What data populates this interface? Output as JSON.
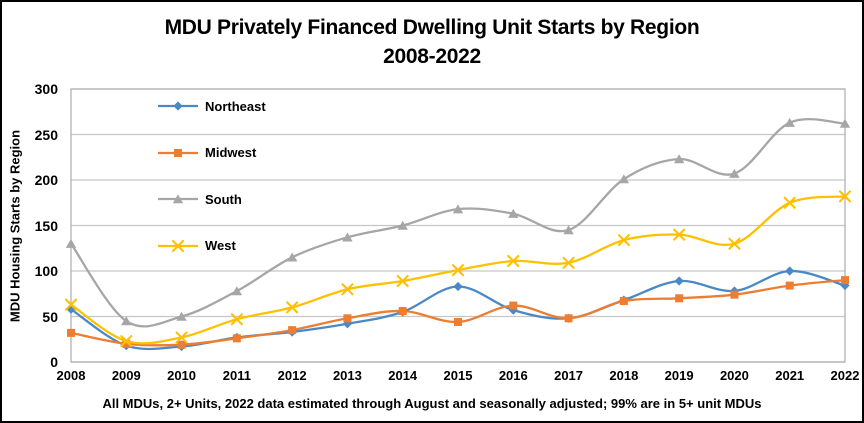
{
  "chart_data": {
    "type": "line",
    "title": "MDU Privately Financed Dwelling Unit Starts by Region",
    "subtitle": "2008-2022",
    "ylabel": "MDU Housing Starts by Region",
    "footnote": "All MDUs, 2+ Units, 2022 data estimated through August and seasonally adjusted; 99% are in 5+ unit MDUs",
    "x": [
      2008,
      2009,
      2010,
      2011,
      2012,
      2013,
      2014,
      2015,
      2016,
      2017,
      2018,
      2019,
      2020,
      2021,
      2022
    ],
    "ylim": [
      0,
      300
    ],
    "ytick_step": 50,
    "grid": "horizontal",
    "line_style": "smooth",
    "legend_position": "inside-top-left",
    "colors": {
      "grid": "#C6C6C6",
      "plot_border": "#ACACAC",
      "text": "#000000"
    },
    "series": [
      {
        "name": "Northeast",
        "color": "#4A89C8",
        "marker": "diamond",
        "values": [
          58,
          18,
          17,
          27,
          33,
          42,
          55,
          83,
          57,
          48,
          68,
          89,
          78,
          100,
          84
        ]
      },
      {
        "name": "Midwest",
        "color": "#ED7D31",
        "marker": "square",
        "values": [
          32,
          20,
          19,
          26,
          35,
          48,
          56,
          44,
          62,
          48,
          67,
          70,
          74,
          84,
          90
        ]
      },
      {
        "name": "South",
        "color": "#A6A6A6",
        "marker": "triangle",
        "values": [
          130,
          45,
          50,
          78,
          115,
          137,
          150,
          168,
          163,
          145,
          201,
          223,
          207,
          263,
          262
        ]
      },
      {
        "name": "West",
        "color": "#FFC000",
        "marker": "x",
        "values": [
          63,
          23,
          27,
          47,
          60,
          80,
          89,
          101,
          111,
          109,
          134,
          140,
          130,
          175,
          182
        ]
      }
    ]
  }
}
